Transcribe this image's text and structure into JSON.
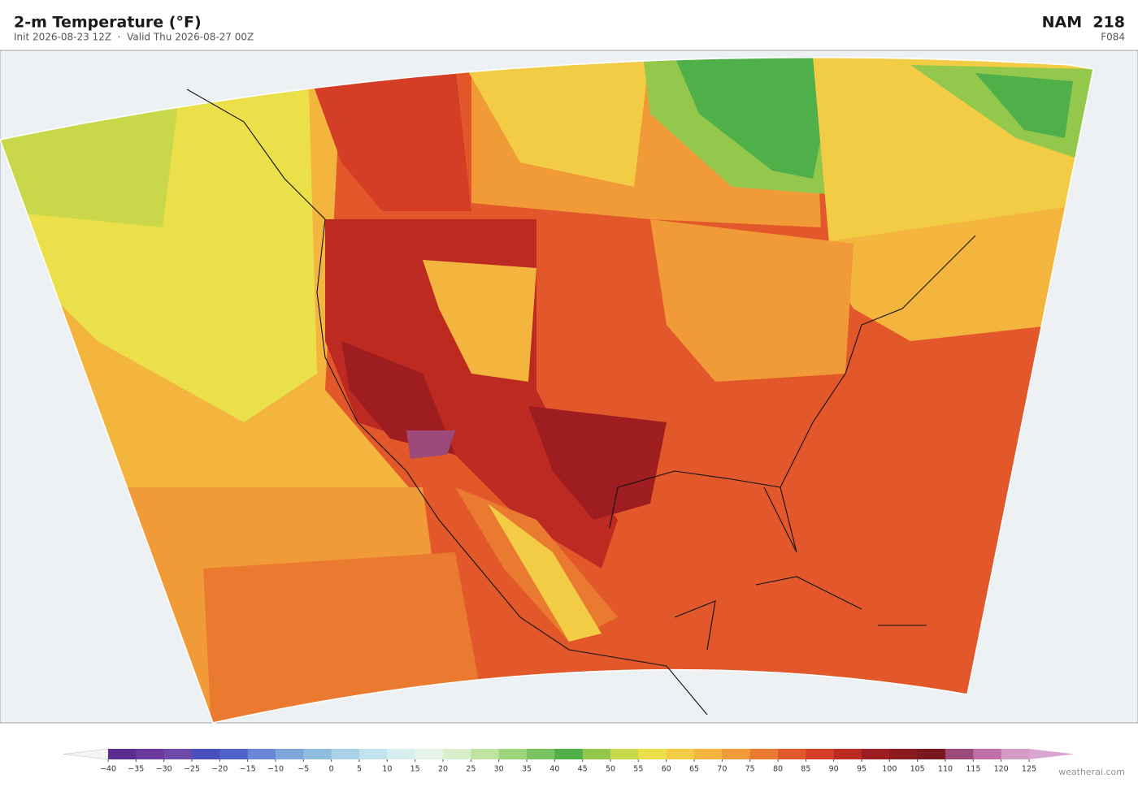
{
  "header": {
    "title": "2-m Temperature  (°F)",
    "subtitle": "Init 2026-08-23 12Z  ·  Valid Thu 2026-08-27 00Z",
    "model": "NAM  218",
    "forecast_hour": "F084"
  },
  "colorbar": {
    "ticks": [
      {
        "value": -40,
        "label": "−40"
      },
      {
        "value": -35,
        "label": "−35"
      },
      {
        "value": -30,
        "label": "−30"
      },
      {
        "value": -25,
        "label": "−25"
      },
      {
        "value": -20,
        "label": "−20"
      },
      {
        "value": -15,
        "label": "−15"
      },
      {
        "value": -10,
        "label": "−10"
      },
      {
        "value": -5,
        "label": "−5"
      },
      0,
      5,
      10,
      15,
      20,
      25,
      30,
      35,
      40,
      45,
      50,
      55,
      60,
      65,
      70,
      75,
      80,
      85,
      90,
      95,
      100,
      105,
      110,
      115,
      120,
      125
    ],
    "colors": [
      "#5b2d8e",
      "#6a3a9c",
      "#6d4aa8",
      "#4a4fbf",
      "#4f63cc",
      "#6b86d6",
      "#7ea6db",
      "#8fbde0",
      "#a9d2e8",
      "#c2e2ee",
      "#d7eef0",
      "#e6f4ea",
      "#d9efcc",
      "#bfe3a0",
      "#9dd47c",
      "#79c460",
      "#4fb04a",
      "#93c84c",
      "#c9d84a",
      "#ece04a",
      "#f2cc44",
      "#f4b53e",
      "#f09a38",
      "#ea7a30",
      "#e2582a",
      "#d43d26",
      "#bd2a22",
      "#9e1d20",
      "#8a1a1e",
      "#7a1820",
      "#9b4a7a",
      "#c070a8",
      "#d49cc4"
    ],
    "under_color": "#f4f4f4",
    "over_color": "#d8a6d0"
  },
  "credit": "weatherai.com"
}
